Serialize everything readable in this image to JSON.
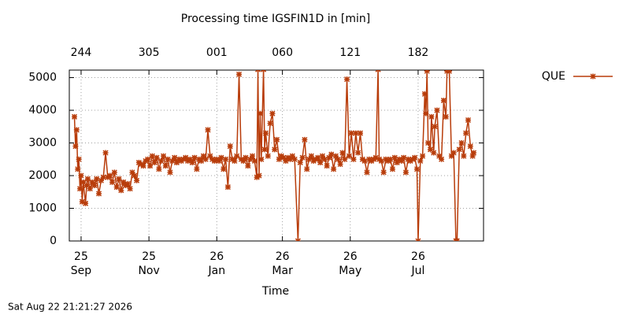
{
  "chart_data": {
    "type": "line",
    "title": "Processing time IGSFIN1D in [min]",
    "xlabel": "Time",
    "footnote": "Sat Aug 22 21:21:27 2026",
    "xlim": [
      -10.6,
      361.8
    ],
    "ylim": [
      0,
      5230
    ],
    "yticks": [
      0,
      1000,
      2000,
      3000,
      4000,
      5000
    ],
    "xticks": [
      {
        "value": 0,
        "label": "25\nSep"
      },
      {
        "value": 61,
        "label": "25\nNov"
      },
      {
        "value": 122,
        "label": "26\nJan"
      },
      {
        "value": 181,
        "label": "26\nMar"
      },
      {
        "value": 242,
        "label": "26\nMay"
      },
      {
        "value": 303,
        "label": "26\nJul"
      }
    ],
    "x2ticks": [
      {
        "value": 0,
        "label": "244"
      },
      {
        "value": 61,
        "label": "305"
      },
      {
        "value": 122,
        "label": "001"
      },
      {
        "value": 181,
        "label": "060"
      },
      {
        "value": 242,
        "label": "121"
      },
      {
        "value": 303,
        "label": "182"
      }
    ],
    "grid": true,
    "legend": "top-right",
    "x": [
      -6,
      -5,
      -4,
      -3,
      -2,
      -1,
      0,
      1,
      2,
      4,
      5,
      6,
      8,
      10,
      12,
      14,
      16,
      18,
      20,
      22,
      24,
      26,
      28,
      30,
      32,
      34,
      36,
      38,
      40,
      42,
      44,
      46,
      48,
      50,
      52,
      54,
      56,
      58,
      60,
      62,
      64,
      66,
      68,
      70,
      72,
      74,
      76,
      78,
      80,
      82,
      84,
      86,
      88,
      90,
      92,
      94,
      96,
      98,
      100,
      102,
      104,
      106,
      108,
      110,
      112,
      114,
      116,
      118,
      120,
      122,
      124,
      126,
      128,
      130,
      132,
      134,
      136,
      138,
      140,
      142,
      144,
      146,
      148,
      150,
      152,
      154,
      156,
      158,
      159,
      160,
      161,
      162,
      164,
      165,
      166,
      168,
      170,
      172,
      174,
      176,
      178,
      180,
      182,
      184,
      186,
      188,
      190,
      192,
      195,
      197,
      199,
      201,
      203,
      205,
      207,
      209,
      211,
      213,
      215,
      217,
      219,
      221,
      223,
      225,
      227,
      229,
      231,
      233,
      235,
      237,
      239,
      241,
      243,
      245,
      247,
      249,
      251,
      253,
      255,
      257,
      259,
      261,
      263,
      265,
      267,
      268,
      270,
      272,
      274,
      276,
      278,
      280,
      282,
      284,
      286,
      288,
      290,
      292,
      294,
      296,
      298,
      300,
      302,
      303,
      305,
      307,
      309,
      310,
      311,
      312,
      314,
      315,
      317,
      318,
      320,
      322,
      324,
      326,
      328,
      329,
      331,
      333,
      335,
      337,
      338,
      340,
      342,
      344,
      346,
      348,
      350,
      352,
      353
    ],
    "series": [
      {
        "name": "QUE",
        "color": "#b83c0a",
        "values": [
          3800,
          2900,
          3400,
          2200,
          2500,
          1600,
          2000,
          1200,
          1800,
          1150,
          1700,
          1900,
          1600,
          1800,
          1700,
          1900,
          1450,
          1850,
          1950,
          2700,
          1950,
          2000,
          1800,
          2100,
          1650,
          1900,
          1550,
          1800,
          1700,
          1750,
          1600,
          2100,
          2000,
          1850,
          2400,
          2350,
          2300,
          2450,
          2500,
          2300,
          2600,
          2400,
          2550,
          2200,
          2450,
          2600,
          2300,
          2500,
          2100,
          2450,
          2550,
          2400,
          2500,
          2450,
          2500,
          2550,
          2450,
          2500,
          2400,
          2550,
          2200,
          2500,
          2450,
          2600,
          2500,
          3400,
          2600,
          2500,
          2450,
          2500,
          2450,
          2550,
          2200,
          2500,
          1650,
          2900,
          2500,
          2450,
          2600,
          5100,
          2500,
          2450,
          2550,
          2300,
          2500,
          2600,
          2450,
          1950,
          5250,
          2000,
          3900,
          2500,
          5250,
          2800,
          3300,
          2600,
          3600,
          3900,
          2800,
          3100,
          2500,
          2600,
          2550,
          2450,
          2550,
          2500,
          2600,
          2500,
          0,
          2400,
          2550,
          3100,
          2200,
          2500,
          2600,
          2450,
          2500,
          2550,
          2400,
          2600,
          2500,
          2300,
          2550,
          2650,
          2200,
          2600,
          2500,
          2350,
          2700,
          2500,
          4950,
          2600,
          3300,
          2500,
          3300,
          2700,
          3300,
          2500,
          2450,
          2100,
          2500,
          2450,
          2500,
          2550,
          5250,
          2500,
          2450,
          2100,
          2500,
          2450,
          2500,
          2200,
          2550,
          2400,
          2500,
          2450,
          2550,
          2100,
          2500,
          2450,
          2500,
          2550,
          2200,
          0,
          2450,
          2600,
          4500,
          3900,
          5200,
          3000,
          2800,
          3800,
          2700,
          3500,
          4000,
          2600,
          2500,
          4300,
          3800,
          5200,
          5200,
          2600,
          2700,
          0,
          0,
          2800,
          3000,
          2600,
          3300,
          3700,
          2900,
          2600,
          2700
        ]
      }
    ]
  }
}
